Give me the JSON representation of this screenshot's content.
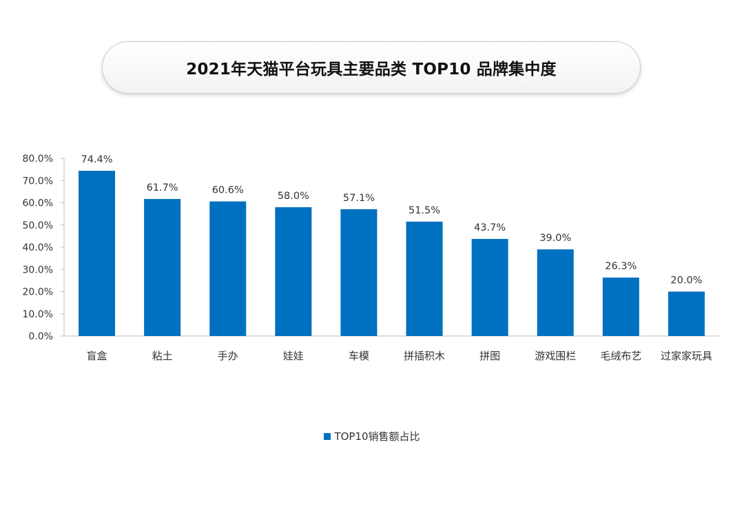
{
  "title": "2021年天猫平台玩具主要品类 TOP10 品牌集中度",
  "colors": {
    "bar": "#0070C0",
    "axis": "#bfbfbf",
    "text": "#333333"
  },
  "chart_data": {
    "type": "bar",
    "categories": [
      "盲盒",
      "粘土",
      "手办",
      "娃娃",
      "车模",
      "拼插积木",
      "拼图",
      "游戏围栏",
      "毛绒布艺",
      "过家家玩具"
    ],
    "series": [
      {
        "name": "TOP10销售额占比",
        "values": [
          74.4,
          61.7,
          60.6,
          58.0,
          57.1,
          51.5,
          43.7,
          39.0,
          26.3,
          20.0
        ],
        "labels": [
          "74.4%",
          "61.7%",
          "60.6%",
          "58.0%",
          "57.1%",
          "51.5%",
          "43.7%",
          "39.0%",
          "26.3%",
          "20.0%"
        ]
      }
    ],
    "yticks": [
      "0.0%",
      "10.0%",
      "20.0%",
      "30.0%",
      "40.0%",
      "50.0%",
      "60.0%",
      "70.0%",
      "80.0%"
    ],
    "ylim": [
      0,
      80
    ],
    "xlabel": "",
    "ylabel": "",
    "grid": false,
    "legend_position": "bottom"
  }
}
